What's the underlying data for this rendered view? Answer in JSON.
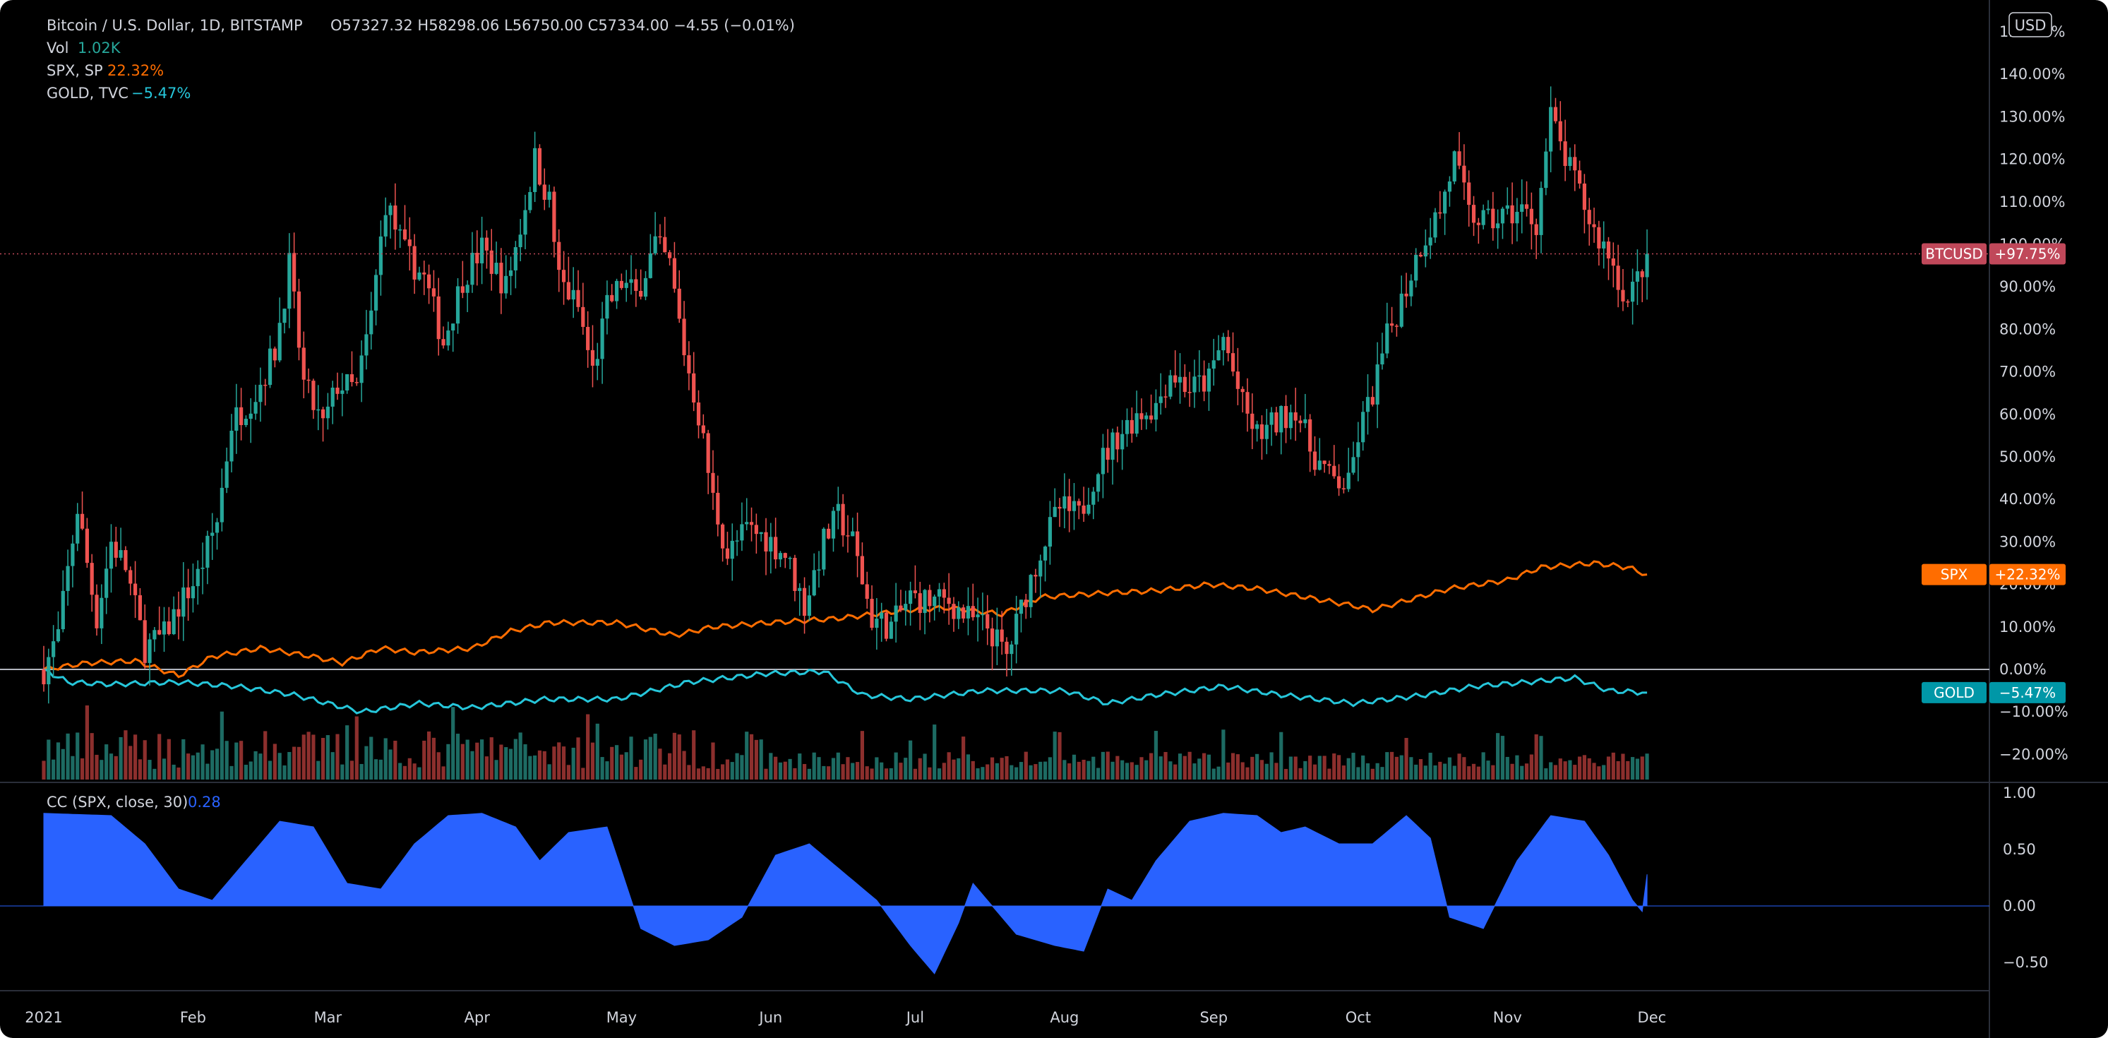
{
  "legend": {
    "title": "Bitcoin / U.S. Dollar, 1D, BITSTAMP",
    "ohlc": "O57327.32  H58298.06  L56750.00  C57334.00  −4.55 (−0.01%)",
    "vol_label": "Vol",
    "vol_value": "1.02K",
    "spx_label": "SPX, SP",
    "spx_value": "22.32%",
    "gold_label": "GOLD, TVC",
    "gold_value": "−5.47%",
    "cc_label": "CC (SPX, close, 30)",
    "cc_value": "0.28"
  },
  "currency_button": "USD",
  "colors": {
    "background": "#000000",
    "up": "#26a69a",
    "down": "#ef5350",
    "spx": "#ff6d00",
    "gold": "#26c6da",
    "cc_fill": "#2962ff",
    "btc_tag": "#c0485a"
  },
  "chart_data": [
    {
      "type": "candlestick",
      "name": "BTCUSD",
      "y_unit": "% change",
      "ylim": [
        -25,
        155
      ],
      "y_ticks": [
        "150.00%",
        "140.00%",
        "130.00%",
        "120.00%",
        "110.00%",
        "100.00%",
        "90.00%",
        "80.00%",
        "70.00%",
        "60.00%",
        "50.00%",
        "40.00%",
        "30.00%",
        "20.00%",
        "10.00%",
        "0.00%",
        "−10.00%",
        "−20.00%"
      ],
      "x_ticks": [
        "2021",
        "Feb",
        "Mar",
        "Apr",
        "May",
        "Jun",
        "Jul",
        "Aug",
        "Sep",
        "Oct",
        "Nov",
        "Dec"
      ],
      "last_value_label": "BTCUSD",
      "last_value": "+97.75%",
      "last_value_num": 97.75,
      "close_path": [
        [
          "2021-01-01",
          0
        ],
        [
          "2021-01-04",
          8
        ],
        [
          "2021-01-08",
          38
        ],
        [
          "2021-01-12",
          12
        ],
        [
          "2021-01-15",
          30
        ],
        [
          "2021-01-18",
          24
        ],
        [
          "2021-01-22",
          5
        ],
        [
          "2021-01-26",
          8
        ],
        [
          "2021-01-29",
          15
        ],
        [
          "2021-02-02",
          22
        ],
        [
          "2021-02-06",
          35
        ],
        [
          "2021-02-09",
          58
        ],
        [
          "2021-02-14",
          65
        ],
        [
          "2021-02-18",
          75
        ],
        [
          "2021-02-21",
          95
        ],
        [
          "2021-02-24",
          67
        ],
        [
          "2021-02-28",
          57
        ],
        [
          "2021-03-03",
          67
        ],
        [
          "2021-03-07",
          66
        ],
        [
          "2021-03-10",
          83
        ],
        [
          "2021-03-13, ",
          110
        ],
        [
          "2021-03-17",
          98
        ],
        [
          "2021-03-21",
          92
        ],
        [
          "2021-03-25",
          77
        ],
        [
          "2021-03-29",
          92
        ],
        [
          "2021-04-02",
          99
        ],
        [
          "2021-04-07",
          90
        ],
        [
          "2021-04-10",
          104
        ],
        [
          "2021-04-13",
          120
        ],
        [
          "2021-04-16",
          110
        ],
        [
          "2021-04-18",
          92
        ],
        [
          "2021-04-22",
          85
        ],
        [
          "2021-04-25",
          70
        ],
        [
          "2021-04-28",
          85
        ],
        [
          "2021-05-01",
          91
        ],
        [
          "2021-05-04",
          88
        ],
        [
          "2021-05-08",
          100
        ],
        [
          "2021-05-11",
          95
        ],
        [
          "2021-05-14",
          75
        ],
        [
          "2021-05-17",
          60
        ],
        [
          "2021-05-20",
          40
        ],
        [
          "2021-05-23",
          27
        ],
        [
          "2021-05-27",
          33
        ],
        [
          "2021-05-31",
          31
        ],
        [
          "2021-06-04",
          27
        ],
        [
          "2021-06-08",
          15
        ],
        [
          "2021-06-12",
          30
        ],
        [
          "2021-06-15",
          36
        ],
        [
          "2021-06-18",
          30
        ],
        [
          "2021-06-22",
          12
        ],
        [
          "2021-06-26",
          10
        ],
        [
          "2021-06-30",
          17
        ],
        [
          "2021-07-04",
          16
        ],
        [
          "2021-07-08",
          16
        ],
        [
          "2021-07-12",
          12
        ],
        [
          "2021-07-16",
          10
        ],
        [
          "2021-07-20",
          3
        ],
        [
          "2021-07-24",
          18
        ],
        [
          "2021-07-27",
          28
        ],
        [
          "2021-07-31",
          38
        ],
        [
          "2021-08-04",
          36
        ],
        [
          "2021-08-08",
          48
        ],
        [
          "2021-08-12",
          55
        ],
        [
          "2021-08-16",
          60
        ],
        [
          "2021-08-20",
          62
        ],
        [
          "2021-08-23, ",
          70
        ],
        [
          "2021-08-27",
          66
        ],
        [
          "2021-08-31",
          68
        ],
        [
          "2021-09-03",
          78
        ],
        [
          "2021-09-07",
          62
        ],
        [
          "2021-09-10",
          55
        ],
        [
          "2021-09-14",
          58
        ],
        [
          "2021-09-18",
          62
        ],
        [
          "2021-09-21",
          52
        ],
        [
          "2021-09-25",
          45
        ],
        [
          "2021-09-29",
          43
        ],
        [
          "2021-10-01",
          55
        ],
        [
          "2021-10-04",
          65
        ],
        [
          "2021-10-07",
          78
        ],
        [
          "2021-10-11",
          90
        ],
        [
          "2021-10-14",
          100
        ],
        [
          "2021-10-18",
          108
        ],
        [
          "2021-10-21",
          120
        ],
        [
          "2021-10-24",
          107
        ],
        [
          "2021-10-28",
          105
        ],
        [
          "2021-11-01",
          107
        ],
        [
          "2021-11-04",
          108
        ],
        [
          "2021-11-07",
          105
        ],
        [
          "2021-11-10",
          130
        ],
        [
          "2021-11-13",
          120
        ],
        [
          "2021-11-16",
          112
        ],
        [
          "2021-11-19",
          103
        ],
        [
          "2021-11-22",
          98
        ],
        [
          "2021-11-26",
          86
        ],
        [
          "2021-11-28",
          92
        ],
        [
          "2021-11-30",
          97.75
        ]
      ]
    },
    {
      "type": "bar",
      "name": "Vol",
      "last_value": "1.02K"
    },
    {
      "type": "line",
      "series": [
        {
          "name": "SPX",
          "last_value": "+22.32%",
          "last_value_num": 22.32,
          "values": [
            [
              "2021-01-01",
              0
            ],
            [
              "2021-01-10",
              1.5
            ],
            [
              "2021-01-20",
              2
            ],
            [
              "2021-01-29",
              -1.5
            ],
            [
              "2021-02-05",
              3
            ],
            [
              "2021-02-15",
              5
            ],
            [
              "2021-02-26",
              3
            ],
            [
              "2021-03-04",
              1.5
            ],
            [
              "2021-03-12",
              5
            ],
            [
              "2021-03-19",
              4
            ],
            [
              "2021-03-31",
              5
            ],
            [
              "2021-04-08",
              9
            ],
            [
              "2021-04-16",
              11
            ],
            [
              "2021-04-30",
              11
            ],
            [
              "2021-05-12",
              8
            ],
            [
              "2021-05-20",
              10
            ],
            [
              "2021-06-01",
              11
            ],
            [
              "2021-06-15",
              12
            ],
            [
              "2021-06-30",
              14
            ],
            [
              "2021-07-08",
              14.5
            ],
            [
              "2021-07-19",
              13
            ],
            [
              "2021-07-27",
              17
            ],
            [
              "2021-08-10",
              18
            ],
            [
              "2021-08-20",
              18.5
            ],
            [
              "2021-08-31",
              20
            ],
            [
              "2021-09-10",
              19
            ],
            [
              "2021-09-20",
              17
            ],
            [
              "2021-09-30",
              15
            ],
            [
              "2021-10-04",
              14
            ],
            [
              "2021-10-20",
              19
            ],
            [
              "2021-11-01",
              21
            ],
            [
              "2021-11-08",
              24
            ],
            [
              "2021-11-19",
              25
            ],
            [
              "2021-11-26",
              24
            ],
            [
              "2021-11-30",
              22.32
            ]
          ]
        },
        {
          "name": "GOLD",
          "last_value": "−5.47%",
          "last_value_num": -5.47,
          "values": [
            [
              "2021-01-01",
              0
            ],
            [
              "2021-01-06",
              -3
            ],
            [
              "2021-01-15",
              -3.5
            ],
            [
              "2021-01-29",
              -3
            ],
            [
              "2021-02-10",
              -4
            ],
            [
              "2021-02-22",
              -6
            ],
            [
              "2021-03-08",
              -10
            ],
            [
              "2021-03-20",
              -8
            ],
            [
              "2021-03-31",
              -9
            ],
            [
              "2021-04-15",
              -7
            ],
            [
              "2021-04-30",
              -7
            ],
            [
              "2021-05-15",
              -3
            ],
            [
              "2021-05-31",
              -1
            ],
            [
              "2021-06-12",
              -0.5
            ],
            [
              "2021-06-20",
              -6
            ],
            [
              "2021-06-30",
              -7
            ],
            [
              "2021-07-15",
              -5
            ],
            [
              "2021-08-01",
              -5
            ],
            [
              "2021-08-10",
              -8
            ],
            [
              "2021-08-20",
              -6
            ],
            [
              "2021-09-03",
              -4
            ],
            [
              "2021-09-15",
              -6
            ],
            [
              "2021-09-30",
              -8
            ],
            [
              "2021-10-15",
              -6
            ],
            [
              "2021-10-25",
              -4
            ],
            [
              "2021-11-05",
              -3
            ],
            [
              "2021-11-15",
              -2
            ],
            [
              "2021-11-22",
              -5
            ],
            [
              "2021-11-30",
              -5.47
            ]
          ]
        }
      ]
    },
    {
      "type": "area",
      "name": "CC (SPX, close, 30)",
      "ylim": [
        -0.7,
        1.05
      ],
      "y_ticks": [
        "1.00",
        "0.50",
        "0.00",
        "−0.50"
      ],
      "values": [
        [
          "2021-01-01",
          0.82
        ],
        [
          "2021-01-15",
          0.8
        ],
        [
          "2021-01-22",
          0.55
        ],
        [
          "2021-01-29",
          0.15
        ],
        [
          "2021-02-05",
          0.05
        ],
        [
          "2021-02-12",
          0.4
        ],
        [
          "2021-02-19",
          0.75
        ],
        [
          "2021-02-26",
          0.7
        ],
        [
          "2021-03-05",
          0.2
        ],
        [
          "2021-03-12",
          0.15
        ],
        [
          "2021-03-19",
          0.55
        ],
        [
          "2021-03-26",
          0.8
        ],
        [
          "2021-04-02",
          0.82
        ],
        [
          "2021-04-09",
          0.7
        ],
        [
          "2021-04-14",
          0.4
        ],
        [
          "2021-04-20",
          0.65
        ],
        [
          "2021-04-28",
          0.7
        ],
        [
          "2021-05-05",
          -0.2
        ],
        [
          "2021-05-12",
          -0.35
        ],
        [
          "2021-05-19",
          -0.3
        ],
        [
          "2021-05-26",
          -0.1
        ],
        [
          "2021-06-02",
          0.45
        ],
        [
          "2021-06-09",
          0.55
        ],
        [
          "2021-06-16",
          0.3
        ],
        [
          "2021-06-23",
          0.05
        ],
        [
          "2021-06-30",
          -0.35
        ],
        [
          "2021-07-05",
          -0.6
        ],
        [
          "2021-07-10",
          -0.15
        ],
        [
          "2021-07-13",
          0.2
        ],
        [
          "2021-07-17",
          0.0
        ],
        [
          "2021-07-22",
          -0.25
        ],
        [
          "2021-07-30",
          -0.35
        ],
        [
          "2021-08-05",
          -0.4
        ],
        [
          "2021-08-10",
          0.15
        ],
        [
          "2021-08-15",
          0.05
        ],
        [
          "2021-08-20",
          0.4
        ],
        [
          "2021-08-27",
          0.75
        ],
        [
          "2021-09-03",
          0.82
        ],
        [
          "2021-09-10",
          0.8
        ],
        [
          "2021-09-15",
          0.65
        ],
        [
          "2021-09-20",
          0.7
        ],
        [
          "2021-09-27",
          0.55
        ],
        [
          "2021-10-04",
          0.55
        ],
        [
          "2021-10-11",
          0.8
        ],
        [
          "2021-10-16",
          0.6
        ],
        [
          "2021-10-20",
          -0.1
        ],
        [
          "2021-10-27",
          -0.2
        ],
        [
          "2021-11-03",
          0.4
        ],
        [
          "2021-11-10",
          0.8
        ],
        [
          "2021-11-17",
          0.75
        ],
        [
          "2021-11-22",
          0.45
        ],
        [
          "2021-11-27",
          0.05
        ],
        [
          "2021-11-29",
          -0.05
        ],
        [
          "2021-11-30",
          0.28
        ]
      ]
    }
  ]
}
